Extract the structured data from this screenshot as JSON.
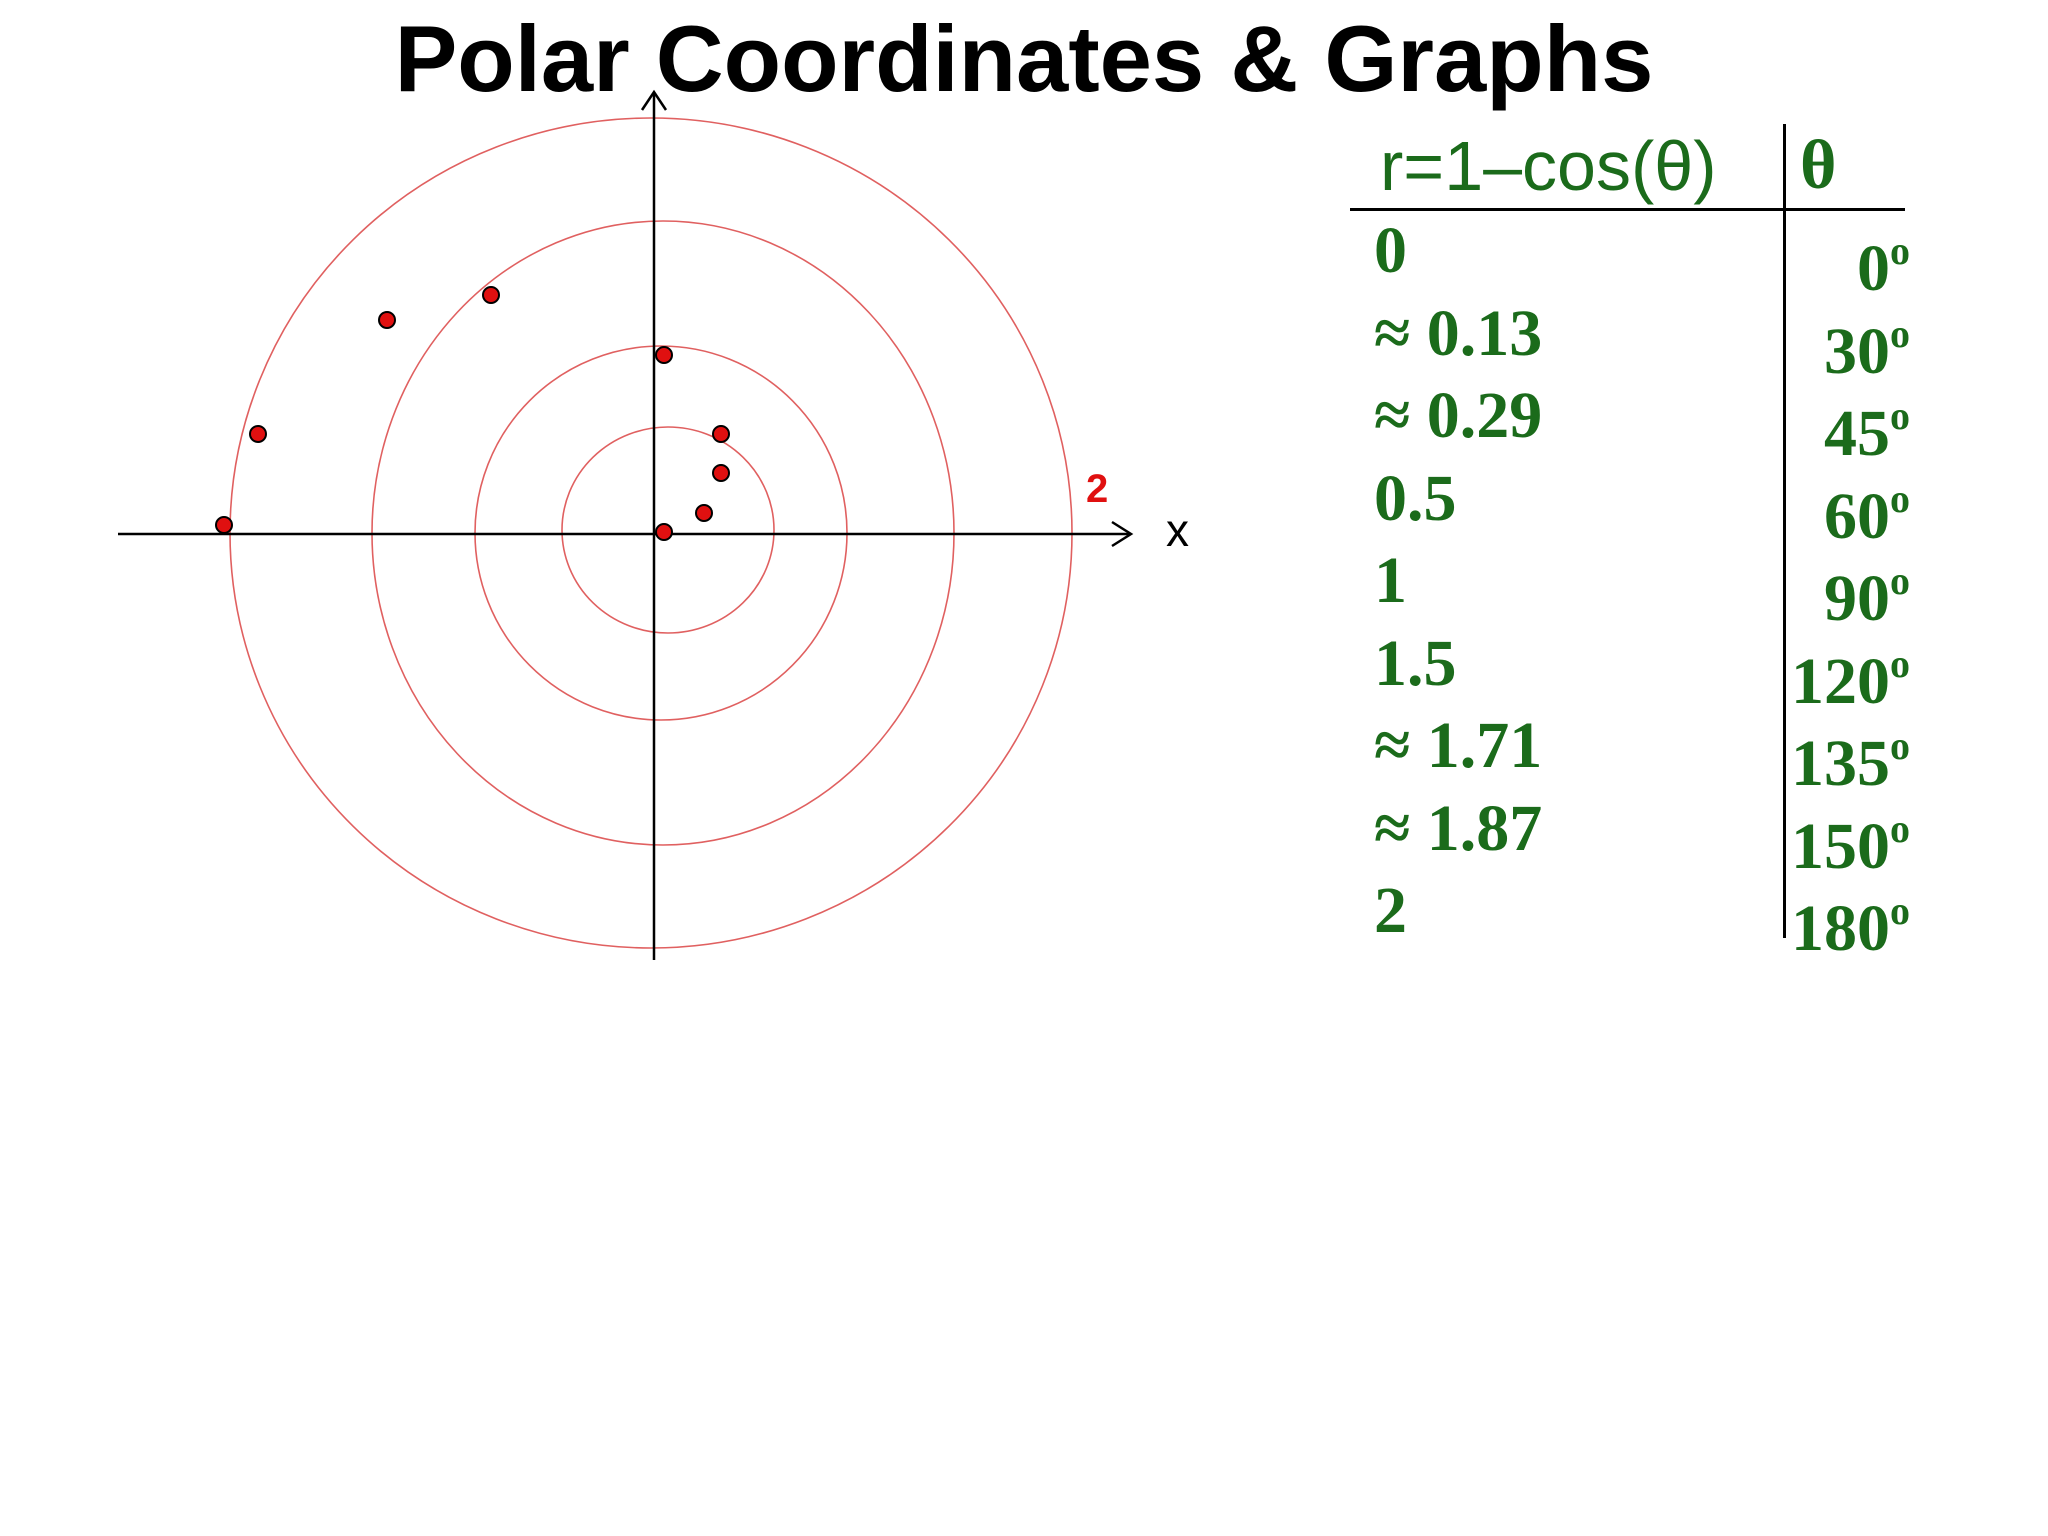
{
  "title": "Polar Coordinates & Graphs",
  "colors": {
    "table_text": "#1b6b1b",
    "circle": "#e06060",
    "point_fill": "#e01010",
    "label_red": "#e01010",
    "axis": "#000000"
  },
  "plot": {
    "x_axis_label": "x",
    "radius_label": "2",
    "circle_radii": [
      0.5,
      1,
      1.5,
      2
    ],
    "circle_count": 4
  },
  "table": {
    "header_r": "r=1–cos(θ)",
    "header_theta": "θ",
    "degree_symbol": "o",
    "rows": [
      {
        "r": "0",
        "theta": "0"
      },
      {
        "r": "≈ 0.13",
        "theta": "30"
      },
      {
        "r": "≈ 0.29",
        "theta": "45"
      },
      {
        "r": "0.5",
        "theta": "60"
      },
      {
        "r": "1",
        "theta": "90"
      },
      {
        "r": "1.5",
        "theta": "120"
      },
      {
        "r": "≈ 1.71",
        "theta": "135"
      },
      {
        "r": "≈ 1.87",
        "theta": "150"
      },
      {
        "r": "2",
        "theta": "180"
      }
    ]
  },
  "chart_data": {
    "type": "scatter",
    "title": "Polar Coordinates & Graphs",
    "xlabel": "x",
    "ylabel": "",
    "series": [
      {
        "name": "",
        "points_polar": [
          {
            "r": 0,
            "theta_deg": 0
          },
          {
            "r": 0.13,
            "theta_deg": 30
          },
          {
            "r": 0.29,
            "theta_deg": 45
          },
          {
            "r": 0.5,
            "theta_deg": 60
          },
          {
            "r": 1,
            "theta_deg": 90
          },
          {
            "r": 1.5,
            "theta_deg": 120
          },
          {
            "r": 1.71,
            "theta_deg": 135
          },
          {
            "r": 1.87,
            "theta_deg": 150
          },
          {
            "r": 2,
            "theta_deg": 180
          }
        ]
      }
    ],
    "grid": "polar circles",
    "rlim": [
      0,
      2
    ]
  }
}
